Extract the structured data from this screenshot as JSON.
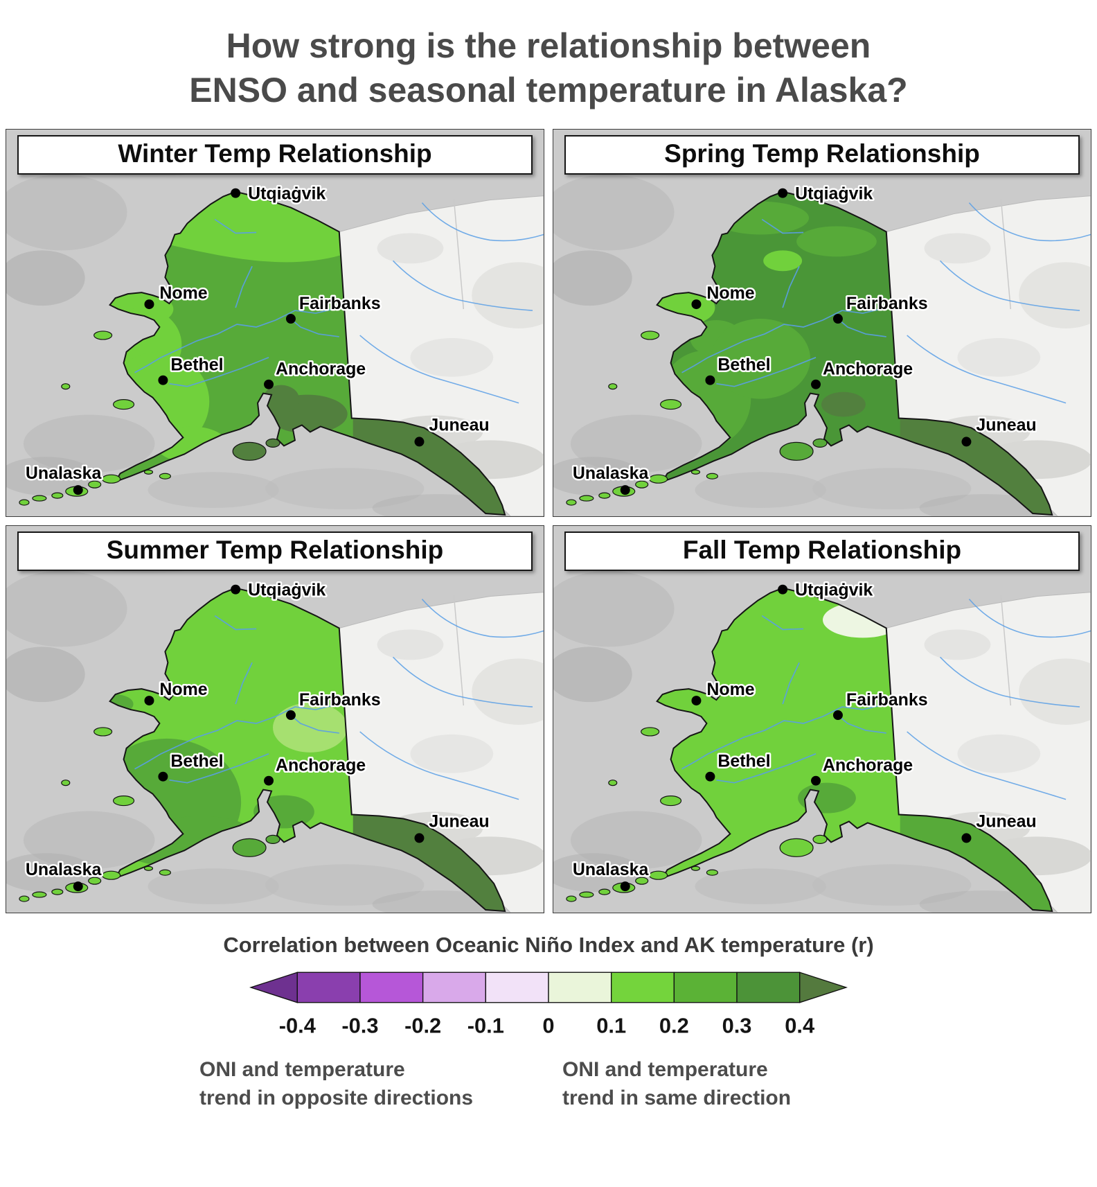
{
  "page": {
    "title_line1": "How strong is the relationship between",
    "title_line2": "ENSO and seasonal temperature in Alaska?"
  },
  "panels": [
    {
      "id": "winter",
      "title": "Winter Temp Relationship",
      "base_key": "medium",
      "kodiak_key": "olive"
    },
    {
      "id": "spring",
      "title": "Spring Temp Relationship",
      "base_key": "deep",
      "kodiak_key": "medium"
    },
    {
      "id": "summer",
      "title": "Summer Temp Relationship",
      "base_key": "bright",
      "kodiak_key": "medium"
    },
    {
      "id": "fall",
      "title": "Fall Temp Relationship",
      "base_key": "bright",
      "kodiak_key": "bright"
    }
  ],
  "cities": [
    {
      "name": "Utqiaġvik"
    },
    {
      "name": "Nome"
    },
    {
      "name": "Fairbanks"
    },
    {
      "name": "Bethel"
    },
    {
      "name": "Anchorage"
    },
    {
      "name": "Juneau"
    },
    {
      "name": "Unalaska"
    }
  ],
  "legend": {
    "title": "Correlation between Oceanic Niño Index and AK temperature (r)",
    "tick_labels": [
      "-0.4",
      "-0.3",
      "-0.2",
      "-0.1",
      "0",
      "0.1",
      "0.2",
      "0.3",
      "0.4"
    ],
    "segment_colors": [
      "#8a3fae",
      "#b657d8",
      "#d9a9ea",
      "#f2e2f8",
      "#eaf5da",
      "#74d43c",
      "#5bb236",
      "#4c9338"
    ],
    "arrow_left_color": "#6e3190",
    "arrow_right_color": "#547a3e",
    "note_left_line1": "ONI and temperature",
    "note_left_line2": "trend in opposite directions",
    "note_right_line1": "ONI and temperature",
    "note_right_line2": "trend in same direction"
  },
  "map_palette": {
    "ocean": "#cbcbcb",
    "terrain_dark": "#adadad",
    "terrain_mid": "#bdbdbd",
    "canada": "#f1f1ef",
    "canada_relief": "#d8d8d5",
    "river": "#5a9fe6",
    "bright": "#71d13c",
    "medium": "#57aa39",
    "deep": "#4a9637",
    "olive": "#52803e",
    "light_green": "#a6e070",
    "white_pale": "#edf6e2"
  }
}
